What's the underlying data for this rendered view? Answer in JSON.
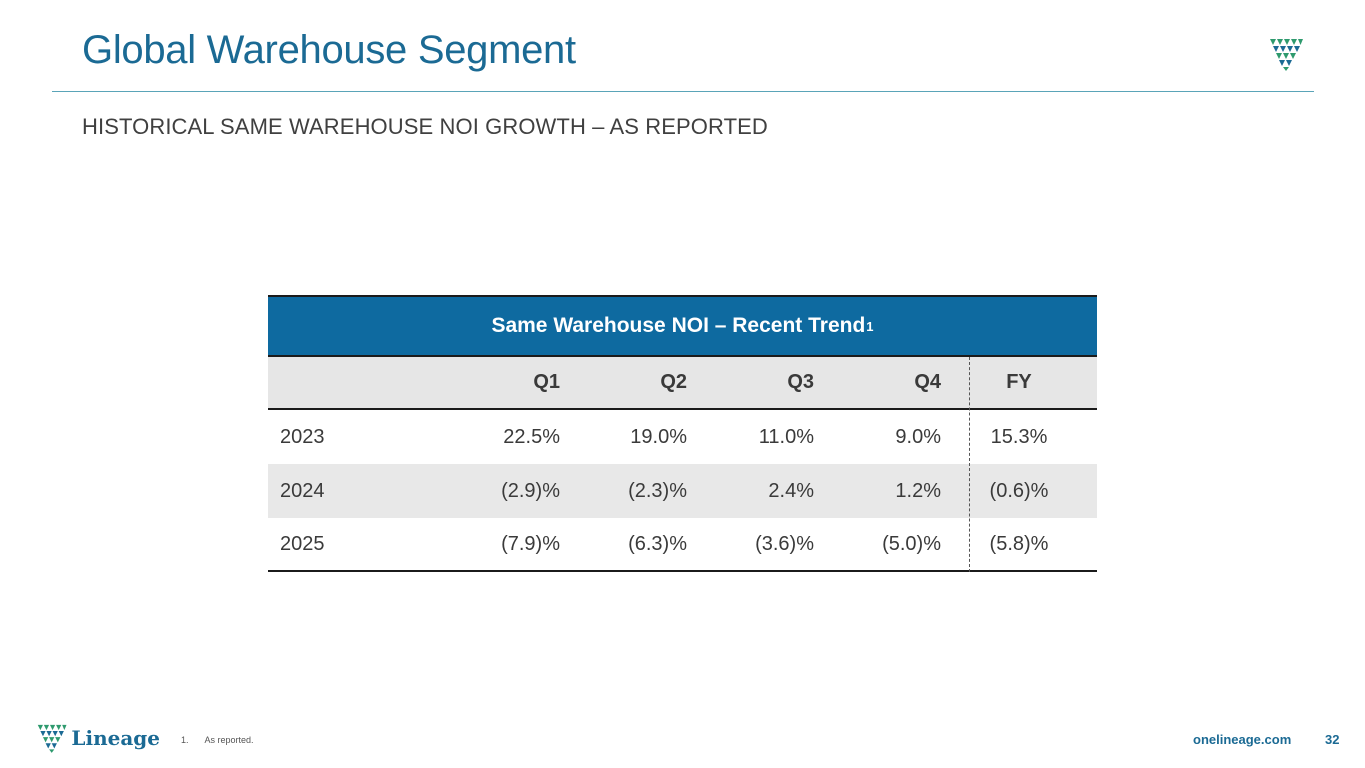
{
  "header": {
    "title": "Global Warehouse Segment",
    "subtitle": "HISTORICAL SAME WAREHOUSE NOI GROWTH – AS REPORTED"
  },
  "table": {
    "title": "Same Warehouse NOI – Recent Trend",
    "title_sup": "1",
    "columns": [
      "",
      "Q1",
      "Q2",
      "Q3",
      "Q4",
      "FY"
    ],
    "rows": [
      {
        "year": "2023",
        "q1": "22.5%",
        "q2": "19.0%",
        "q3": "11.0%",
        "q4": "9.0%",
        "fy": "15.3%"
      },
      {
        "year": "2024",
        "q1": "(2.9)%",
        "q2": "(2.3)%",
        "q3": "2.4%",
        "q4": "1.2%",
        "fy": "(0.6)%"
      },
      {
        "year": "2025",
        "q1": "(7.9)%",
        "q2": "(6.3)%",
        "q3": "(3.6)%",
        "q4": "(5.0)%",
        "fy": "(5.8)%"
      }
    ]
  },
  "footer": {
    "logo_text": "Lineage",
    "footnote_num": "1.",
    "footnote_text": "As reported.",
    "website": "onelineage.com",
    "page_number": "32"
  },
  "colors": {
    "brand_blue": "#1b6a94",
    "header_fill": "#0e6aa0",
    "logo_green": "#2e9a6e"
  },
  "icons": {
    "top_logo": "lineage-shield-icon",
    "footer_logo": "lineage-shield-icon"
  }
}
